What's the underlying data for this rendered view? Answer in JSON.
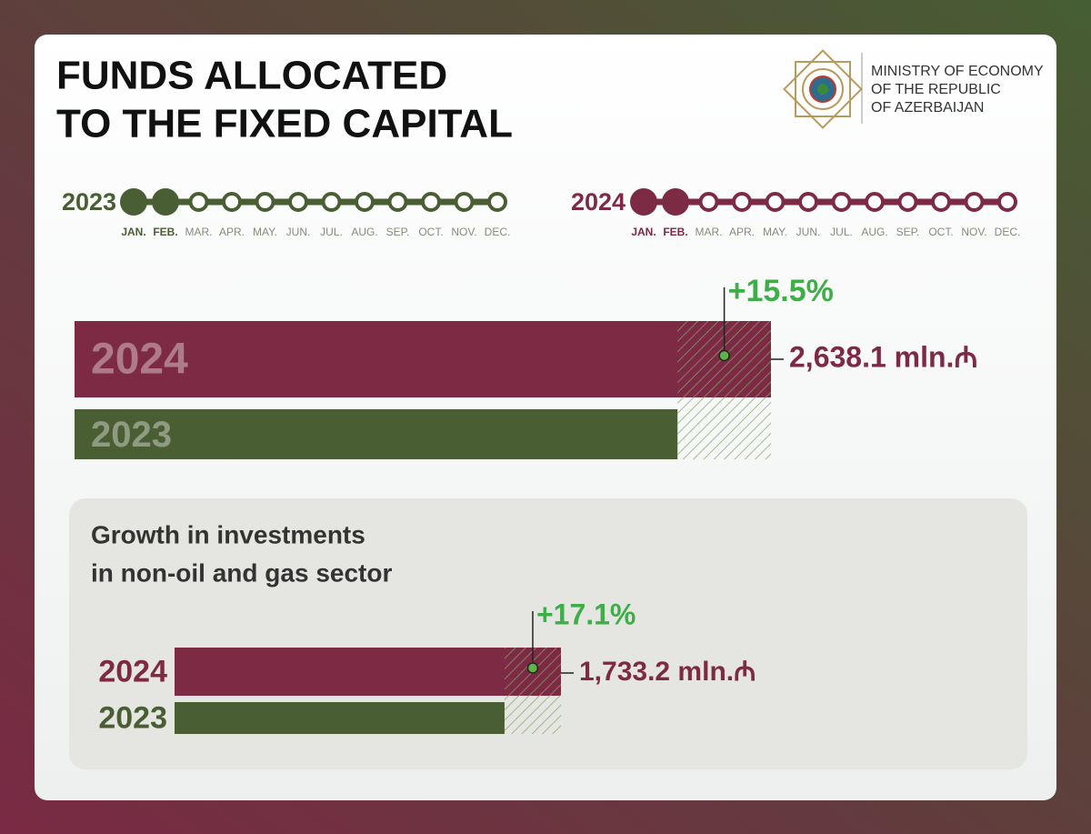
{
  "header": {
    "title_lines": [
      "FUNDS ALLOCATED",
      "TO THE FIXED CAPITAL"
    ],
    "ministry_lines": [
      "MINISTRY OF ECONOMY",
      "OF THE REPUBLIC",
      "OF AZERBAIJAN"
    ]
  },
  "timelines": [
    {
      "year": "2023",
      "color": "#4a5e33",
      "covered": 2,
      "months": [
        "JAN.",
        "FEB.",
        "MAR.",
        "APR.",
        "MAY.",
        "JUN.",
        "JUL.",
        "AUG.",
        "SEP.",
        "OCT.",
        "NOV.",
        "DEC."
      ]
    },
    {
      "year": "2024",
      "color": "#7d2a45",
      "covered": 2,
      "months": [
        "JAN.",
        "FEB.",
        "MAR.",
        "APR.",
        "MAY.",
        "JUN.",
        "JUL.",
        "AUG.",
        "SEP.",
        "OCT.",
        "NOV.",
        "DEC."
      ]
    }
  ],
  "chart_data": [
    {
      "type": "bar",
      "orientation": "horizontal",
      "categories": [
        "2024",
        "2023"
      ],
      "values": [
        2638.1,
        2284.1
      ],
      "value_labels": [
        "2,638.1 mln.₼",
        null
      ],
      "colors": [
        "#7d2a45",
        "#4a5e33"
      ],
      "growth": "+15.5%"
    },
    {
      "type": "bar",
      "orientation": "horizontal",
      "title_lines": [
        "Growth in investments",
        "in non-oil and gas sector"
      ],
      "categories": [
        "2024",
        "2023"
      ],
      "values": [
        1733.2,
        1480.1
      ],
      "value_labels": [
        "1,733.2 mln.₼",
        null
      ],
      "colors": [
        "#7d2a45",
        "#4a5e33"
      ],
      "growth": "+17.1%"
    }
  ]
}
